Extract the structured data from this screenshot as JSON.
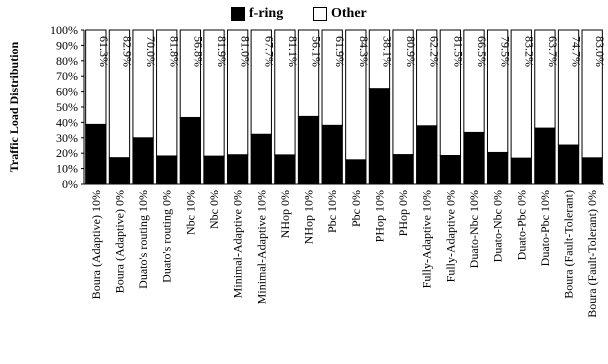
{
  "chart_data": {
    "type": "bar",
    "stacked": true,
    "ylabel": "Traffic Load Distribution",
    "ylim": [
      0,
      100
    ],
    "yticks": [
      "0%",
      "10%",
      "20%",
      "30%",
      "40%",
      "50%",
      "60%",
      "70%",
      "80%",
      "90%",
      "100%"
    ],
    "legend_position": "top-center",
    "colors": {
      "f-ring": "#000000",
      "Other": "#ffffff"
    },
    "categories": [
      "Boura (Adaptive) 10%",
      "Boura (Adaptive) 0%",
      "Duato's routing 10%",
      "Duato's routing 0%",
      "Nbc 10%",
      "Nbc 0%",
      "Minimal-Adaptive 0%",
      "Minimal-Adaptive 10%",
      "NHop 0%",
      "NHop 10%",
      "Pbc 10%",
      "Pbc 0%",
      "PHop 10%",
      "PHop 0%",
      "Fully-Adaptive 10%",
      "Fully-Adaptive 0%",
      "Duato-Nbc 10%",
      "Duato-Nbc 0%",
      "Duato-Pbc 0%",
      "Duato-Pbc 10%",
      "Boura (Fault-Tolerant)",
      "Boura (Fault-Tolerant) 0%"
    ],
    "series": [
      {
        "name": "f-ring",
        "values": [
          38.7,
          17.1,
          30.0,
          18.2,
          43.2,
          18.1,
          19.0,
          32.3,
          18.9,
          43.9,
          38.1,
          15.7,
          61.9,
          19.1,
          37.8,
          18.5,
          33.5,
          20.5,
          16.8,
          36.3,
          25.3,
          17.0
        ]
      },
      {
        "name": "Other",
        "values": [
          61.3,
          82.9,
          70.0,
          81.8,
          56.8,
          81.9,
          81.0,
          67.7,
          81.1,
          56.1,
          61.9,
          84.3,
          38.1,
          80.9,
          62.2,
          81.5,
          66.5,
          79.5,
          83.2,
          63.7,
          74.7,
          83.0
        ]
      }
    ],
    "data_labels": [
      "61.3%",
      "82.9%",
      "70.0%",
      "81.8%",
      "56.8%",
      "81.9%",
      "81.0%",
      "67.7%",
      "81.1%",
      "56.1%",
      "61.9%",
      "84.3%",
      "38.1%",
      "80.9%",
      "62.2%",
      "81.5%",
      "66.5%",
      "79.5%",
      "83.2%",
      "63.7%",
      "74.7%",
      "83.0%"
    ]
  }
}
